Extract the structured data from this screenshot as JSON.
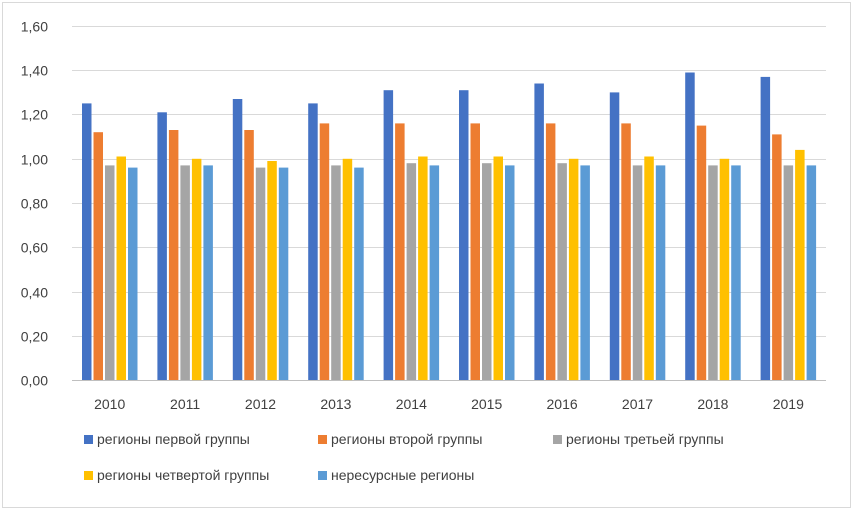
{
  "chart_data": {
    "type": "bar",
    "title": "",
    "xlabel": "",
    "ylabel": "",
    "ylim": [
      0,
      1.6
    ],
    "yticks": [
      "0,00",
      "0,20",
      "0,40",
      "0,60",
      "0,80",
      "1,00",
      "1,20",
      "1,40",
      "1,60"
    ],
    "grid": true,
    "legend_position": "bottom",
    "categories": [
      "2010",
      "2011",
      "2012",
      "2013",
      "2014",
      "2015",
      "2016",
      "2017",
      "2018",
      "2019"
    ],
    "series": [
      {
        "name": "регионы первой группы",
        "color": "#4472c4",
        "values": [
          1.25,
          1.21,
          1.27,
          1.25,
          1.31,
          1.31,
          1.34,
          1.3,
          1.39,
          1.37
        ]
      },
      {
        "name": "регионы второй группы",
        "color": "#ed7d31",
        "values": [
          1.12,
          1.13,
          1.13,
          1.16,
          1.16,
          1.16,
          1.16,
          1.16,
          1.15,
          1.11
        ]
      },
      {
        "name": "регионы третьей группы",
        "color": "#a5a5a5",
        "values": [
          0.97,
          0.97,
          0.96,
          0.97,
          0.98,
          0.98,
          0.98,
          0.97,
          0.97,
          0.97
        ]
      },
      {
        "name": "регионы четвертой группы",
        "color": "#ffc000",
        "values": [
          1.01,
          1.0,
          0.99,
          1.0,
          1.01,
          1.01,
          1.0,
          1.01,
          1.0,
          1.04
        ]
      },
      {
        "name": "нересурсные регионы",
        "color": "#5b9bd5",
        "values": [
          0.96,
          0.97,
          0.96,
          0.96,
          0.97,
          0.97,
          0.97,
          0.97,
          0.97,
          0.97
        ]
      }
    ]
  }
}
